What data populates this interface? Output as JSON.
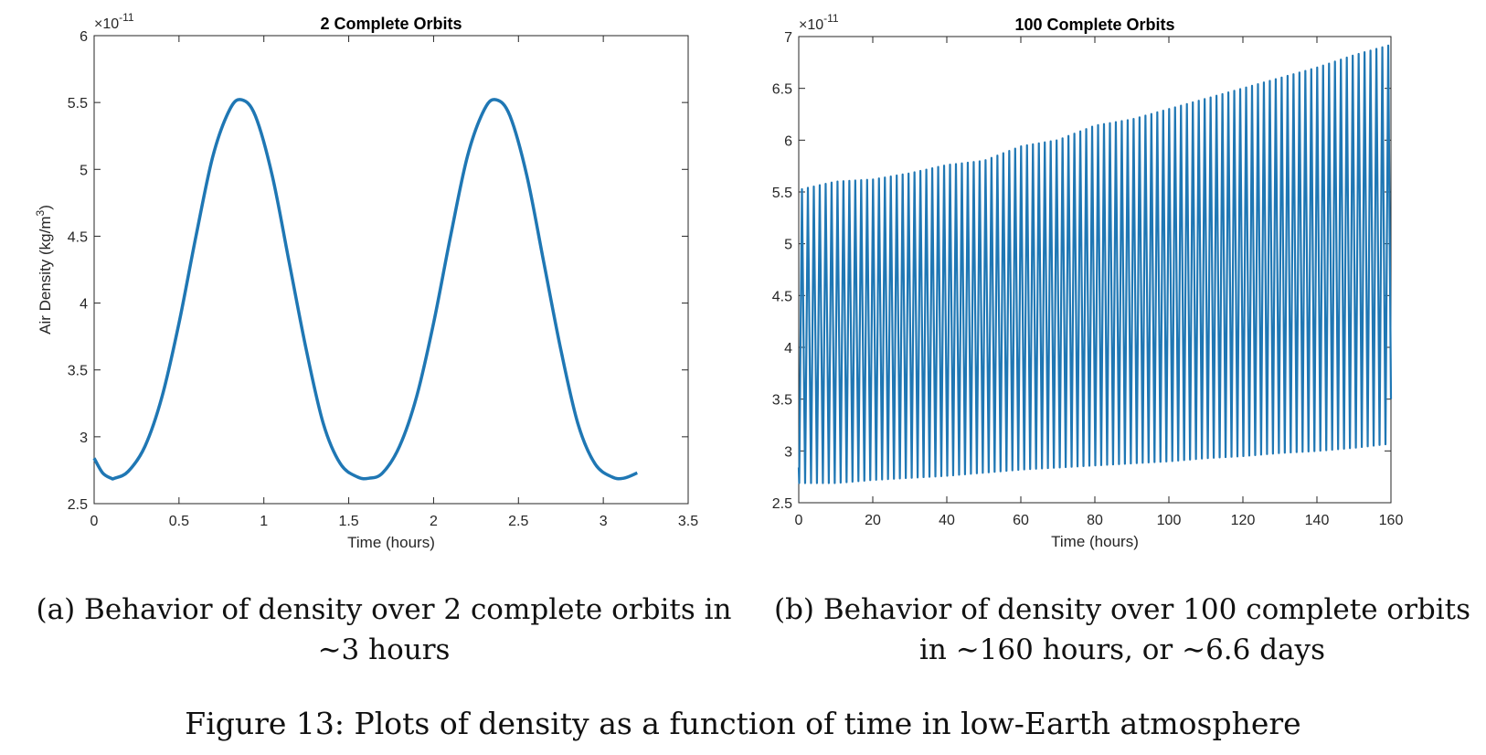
{
  "chart_data": [
    {
      "type": "line",
      "title": "2 Complete Orbits",
      "xlabel": "Time (hours)",
      "ylabel": "Air Density (kg/m^3)",
      "ylabel_main": "Air Density (kg/m",
      "ylabel_sup": "3",
      "ylabel_end": ")",
      "exponent_base": "×10",
      "exponent_power": "-11",
      "xlim": [
        0,
        3.5
      ],
      "ylim": [
        2.5,
        6
      ],
      "xticks": [
        "0",
        "0.5",
        "1",
        "1.5",
        "2",
        "2.5",
        "3",
        "3.5"
      ],
      "yticks": [
        "2.5",
        "3",
        "3.5",
        "4",
        "4.5",
        "5",
        "5.5",
        "6"
      ],
      "grid": false,
      "series_color": "#1f77b4",
      "series": [
        {
          "x": [
            0,
            0.05,
            0.1,
            0.12,
            0.2,
            0.3,
            0.4,
            0.5,
            0.6,
            0.7,
            0.8,
            0.87,
            0.95,
            1.05,
            1.15,
            1.25,
            1.35,
            1.45,
            1.55,
            1.62,
            1.7,
            1.8,
            1.9,
            2.0,
            2.1,
            2.2,
            2.3,
            2.37,
            2.45,
            2.55,
            2.65,
            2.75,
            2.85,
            2.95,
            3.05,
            3.12,
            3.2
          ],
          "y": [
            2.84,
            2.73,
            2.69,
            2.69,
            2.74,
            2.93,
            3.3,
            3.85,
            4.5,
            5.1,
            5.45,
            5.52,
            5.4,
            4.95,
            4.3,
            3.65,
            3.1,
            2.8,
            2.7,
            2.69,
            2.73,
            2.93,
            3.3,
            3.85,
            4.5,
            5.1,
            5.45,
            5.52,
            5.4,
            4.95,
            4.3,
            3.65,
            3.1,
            2.8,
            2.7,
            2.69,
            2.73
          ]
        }
      ]
    },
    {
      "type": "line",
      "title": "100 Complete Orbits",
      "xlabel": "Time (hours)",
      "ylabel": "Air Density (kg/m^3)",
      "ylabel_main": "Air Density (kg/m",
      "ylabel_sup": "3",
      "ylabel_end": ")",
      "exponent_base": "×10",
      "exponent_power": "-11",
      "xlim": [
        0,
        160
      ],
      "ylim": [
        2.5,
        7
      ],
      "xticks": [
        "0",
        "20",
        "40",
        "60",
        "80",
        "100",
        "120",
        "140",
        "160"
      ],
      "yticks": [
        "2.5",
        "3",
        "3.5",
        "4",
        "4.5",
        "5",
        "5.5",
        "6",
        "6.5",
        "7"
      ],
      "grid": false,
      "series_color": "#1f77b4",
      "orbits": 100,
      "period_hours": 1.6,
      "max_envelope": {
        "x": [
          0,
          10,
          20,
          30,
          40,
          50,
          60,
          70,
          80,
          90,
          100,
          110,
          120,
          130,
          140,
          150,
          160
        ],
        "y": [
          5.52,
          5.6,
          5.62,
          5.68,
          5.76,
          5.8,
          5.94,
          6.0,
          6.14,
          6.2,
          6.3,
          6.4,
          6.5,
          6.6,
          6.7,
          6.82,
          6.92
        ]
      },
      "min_envelope": {
        "x": [
          0,
          10,
          20,
          30,
          40,
          50,
          60,
          70,
          80,
          90,
          100,
          110,
          120,
          130,
          140,
          150,
          160
        ],
        "y": [
          2.69,
          2.69,
          2.72,
          2.74,
          2.76,
          2.79,
          2.82,
          2.84,
          2.86,
          2.88,
          2.9,
          2.93,
          2.95,
          2.98,
          3.0,
          3.03,
          3.07
        ]
      }
    }
  ],
  "captions": {
    "a_line1": "(a) Behavior of density over 2 complete orbits in",
    "a_line2": "∼3 hours",
    "b_line1": "(b) Behavior of density over 100 complete orbits",
    "b_line2": "in ∼160 hours, or ∼6.6 days",
    "figure": "Figure 13: Plots of density as a function of time in low-Earth atmosphere"
  }
}
